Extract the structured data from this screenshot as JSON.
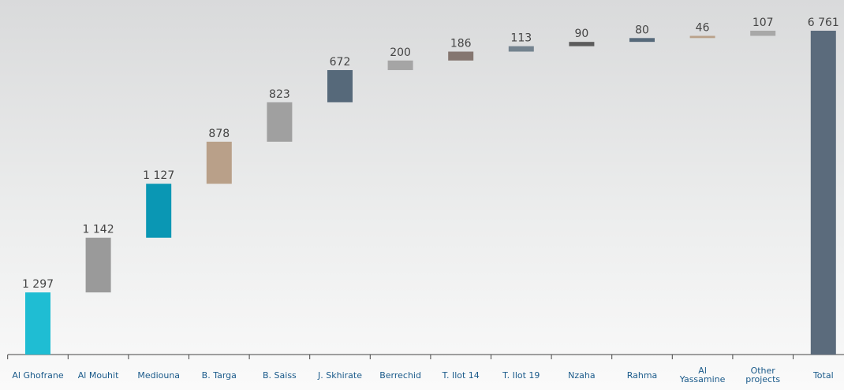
{
  "chart_data": {
    "type": "waterfall",
    "categories": [
      "Al Ghofrane",
      "Al Mouhit",
      "Mediouna",
      "B. Targa",
      "B. Saiss",
      "J. Skhirate",
      "Berrechid",
      "T. Ilot 14",
      "T. Ilot 19",
      "Nzaha",
      "Rahma",
      "Al Yassamine",
      "Other projects",
      "Total"
    ],
    "values": [
      1297,
      1142,
      1127,
      878,
      823,
      672,
      200,
      186,
      113,
      90,
      80,
      46,
      107,
      6761
    ],
    "value_labels": [
      "1 297",
      "1 142",
      "1 127",
      "878",
      "823",
      "672",
      "200",
      "186",
      "113",
      "90",
      "80",
      "46",
      "107",
      "6 761"
    ],
    "colors": [
      "#1fbdd3",
      "#9a9a9a",
      "#0a97b4",
      "#b9a089",
      "#a0a0a0",
      "#56697a",
      "#a5a5a5",
      "#857670",
      "#74838f",
      "#5c5c5c",
      "#56697a",
      "#baa28a",
      "#a8a8a8",
      "#5b6b7c"
    ]
  }
}
